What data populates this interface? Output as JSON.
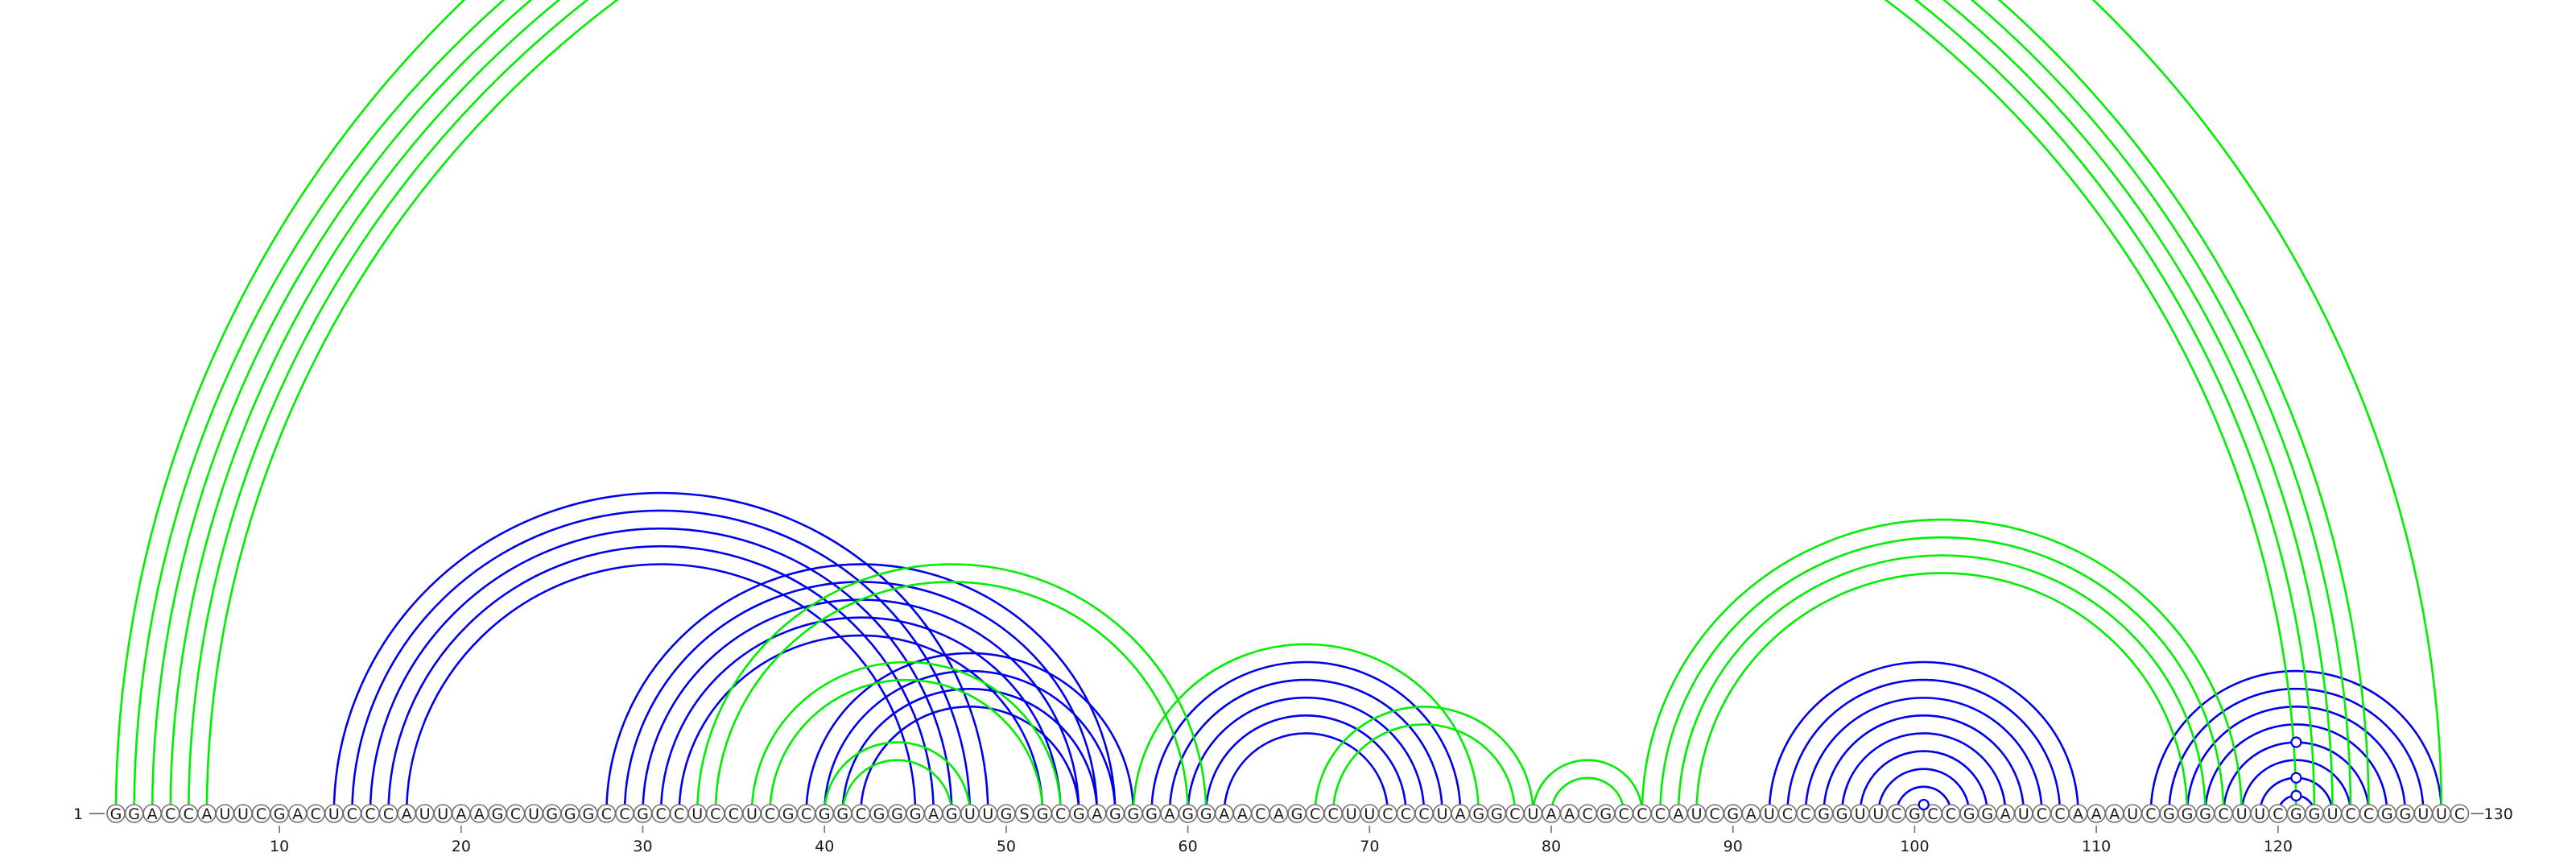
{
  "diagram": {
    "type": "rna-arc-diagram",
    "sequence": "GGACCAUUCGACUCCCAUUAAGCUGGGCCGCCUCCUCGCGGCGGGAGUUGSGCGAGGGAGGAACAGCCUUCCCUAGGCUAACGCCCAUCGAUCCGGUUCGCCGGAUCCAAAUCGGGCUUCGGUCCGGUUC",
    "start_label": "1",
    "end_label": "130",
    "ticks": [
      "10",
      "20",
      "30",
      "40",
      "50",
      "60",
      "70",
      "80",
      "90",
      "100",
      "110",
      "120"
    ],
    "colors": {
      "blue": "#0000ee",
      "green": "#00ee00"
    },
    "arcs": [
      {
        "color": "blue",
        "i": 12,
        "j": 48
      },
      {
        "color": "blue",
        "i": 13,
        "j": 47
      },
      {
        "color": "blue",
        "i": 14,
        "j": 46
      },
      {
        "color": "blue",
        "i": 15,
        "j": 45
      },
      {
        "color": "blue",
        "i": 16,
        "j": 44
      },
      {
        "color": "blue",
        "i": 27,
        "j": 55
      },
      {
        "color": "blue",
        "i": 28,
        "j": 54
      },
      {
        "color": "blue",
        "i": 29,
        "j": 53
      },
      {
        "color": "blue",
        "i": 30,
        "j": 52
      },
      {
        "color": "blue",
        "i": 31,
        "j": 51
      },
      {
        "color": "blue",
        "i": 38,
        "j": 56
      },
      {
        "color": "blue",
        "i": 39,
        "j": 55
      },
      {
        "color": "blue",
        "i": 40,
        "j": 54
      },
      {
        "color": "blue",
        "i": 41,
        "j": 53
      },
      {
        "color": "blue",
        "i": 57,
        "j": 74
      },
      {
        "color": "blue",
        "i": 58,
        "j": 73
      },
      {
        "color": "blue",
        "i": 59,
        "j": 72
      },
      {
        "color": "blue",
        "i": 60,
        "j": 71
      },
      {
        "color": "blue",
        "i": 61,
        "j": 70
      },
      {
        "color": "blue",
        "i": 91,
        "j": 108
      },
      {
        "color": "blue",
        "i": 92,
        "j": 107
      },
      {
        "color": "blue",
        "i": 93,
        "j": 106
      },
      {
        "color": "blue",
        "i": 94,
        "j": 105
      },
      {
        "color": "blue",
        "i": 95,
        "j": 104
      },
      {
        "color": "blue",
        "i": 96,
        "j": 103
      },
      {
        "color": "blue",
        "i": 97,
        "j": 102
      },
      {
        "color": "blue",
        "i": 98,
        "j": 101
      },
      {
        "color": "blue",
        "i": 99,
        "j": 100
      },
      {
        "color": "blue",
        "i": 112,
        "j": 128
      },
      {
        "color": "blue",
        "i": 113,
        "j": 127
      },
      {
        "color": "blue",
        "i": 114,
        "j": 126
      },
      {
        "color": "blue",
        "i": 115,
        "j": 125
      },
      {
        "color": "blue",
        "i": 116,
        "j": 124
      },
      {
        "color": "blue",
        "i": 117,
        "j": 123
      },
      {
        "color": "blue",
        "i": 118,
        "j": 122
      },
      {
        "color": "blue",
        "i": 119,
        "j": 121
      },
      {
        "color": "green",
        "i": 1,
        "j": 124
      },
      {
        "color": "green",
        "i": 2,
        "j": 123
      },
      {
        "color": "green",
        "i": 3,
        "j": 122
      },
      {
        "color": "green",
        "i": 4,
        "j": 121
      },
      {
        "color": "green",
        "i": 5,
        "j": 120
      },
      {
        "color": "green",
        "i": 0,
        "j": 128
      },
      {
        "color": "green",
        "i": 32,
        "j": 60
      },
      {
        "color": "green",
        "i": 33,
        "j": 59
      },
      {
        "color": "green",
        "i": 35,
        "j": 52
      },
      {
        "color": "green",
        "i": 36,
        "j": 51
      },
      {
        "color": "green",
        "i": 39,
        "j": 47
      },
      {
        "color": "green",
        "i": 40,
        "j": 46
      },
      {
        "color": "green",
        "i": 56,
        "j": 75
      },
      {
        "color": "green",
        "i": 66,
        "j": 78
      },
      {
        "color": "green",
        "i": 67,
        "j": 77
      },
      {
        "color": "green",
        "i": 78,
        "j": 84
      },
      {
        "color": "green",
        "i": 79,
        "j": 83
      },
      {
        "color": "green",
        "i": 84,
        "j": 117
      },
      {
        "color": "green",
        "i": 85,
        "j": 116
      },
      {
        "color": "green",
        "i": 86,
        "j": 115
      },
      {
        "color": "green",
        "i": 87,
        "j": 114
      }
    ],
    "markers": [
      {
        "color": "blue",
        "i": 99,
        "j": 100
      },
      {
        "color": "blue",
        "i": 119,
        "j": 121
      },
      {
        "color": "blue",
        "i": 118,
        "j": 122
      },
      {
        "color": "blue",
        "i": 116,
        "j": 124
      }
    ]
  }
}
